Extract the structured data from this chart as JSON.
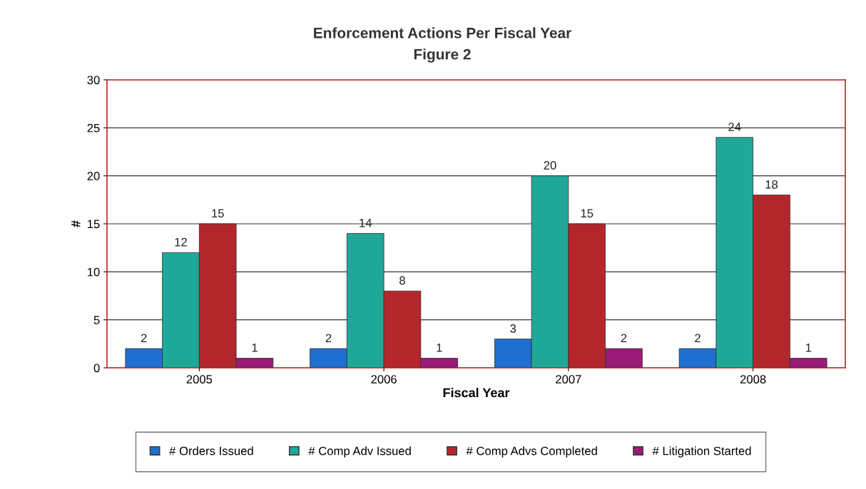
{
  "chart_data": {
    "type": "bar",
    "title": "Enforcement Actions Per Fiscal Year",
    "subtitle": "Figure 2",
    "xlabel": "Fiscal Year",
    "ylabel": "#",
    "categories": [
      "2005",
      "2006",
      "2007",
      "2008"
    ],
    "series": [
      {
        "name": "# Orders Issued",
        "color": "#1f6fd0",
        "values": [
          2,
          2,
          3,
          2
        ]
      },
      {
        "name": "# Comp Adv Issued",
        "color": "#1fa89a",
        "values": [
          12,
          14,
          20,
          24
        ]
      },
      {
        "name": "# Comp Advs Completed",
        "color": "#b3272c",
        "values": [
          15,
          8,
          15,
          18
        ]
      },
      {
        "name": "# Litigation Started",
        "color": "#9a1a7a",
        "values": [
          1,
          1,
          2,
          1
        ]
      }
    ],
    "ylim": [
      0,
      30
    ],
    "yticks": [
      0,
      5,
      10,
      15,
      20,
      25,
      30
    ],
    "grid": "y",
    "legend": "bottom",
    "data_labels": true
  }
}
